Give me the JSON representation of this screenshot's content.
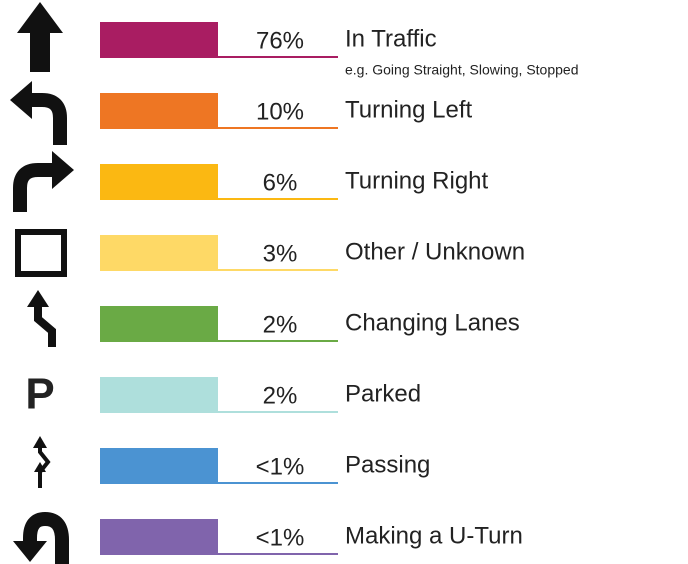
{
  "items": [
    {
      "percent": "76%",
      "label": "In Traffic",
      "sublabel": "e.g. Going Straight, Slowing, Stopped",
      "color": "#a91d62"
    },
    {
      "percent": "10%",
      "label": "Turning Left",
      "color": "#ee7623"
    },
    {
      "percent": "6%",
      "label": "Turning Right",
      "color": "#fbb812"
    },
    {
      "percent": "3%",
      "label": "Other / Unknown",
      "color": "#fed966"
    },
    {
      "percent": "2%",
      "label": "Changing Lanes",
      "color": "#6aaa45"
    },
    {
      "percent": "2%",
      "label": "Parked",
      "icon": "P",
      "color": "#aedfdc"
    },
    {
      "percent": "<1%",
      "label": "Passing",
      "color": "#4b93d2"
    },
    {
      "percent": "<1%",
      "label": "Making a U-Turn",
      "color": "#8064ac"
    }
  ]
}
